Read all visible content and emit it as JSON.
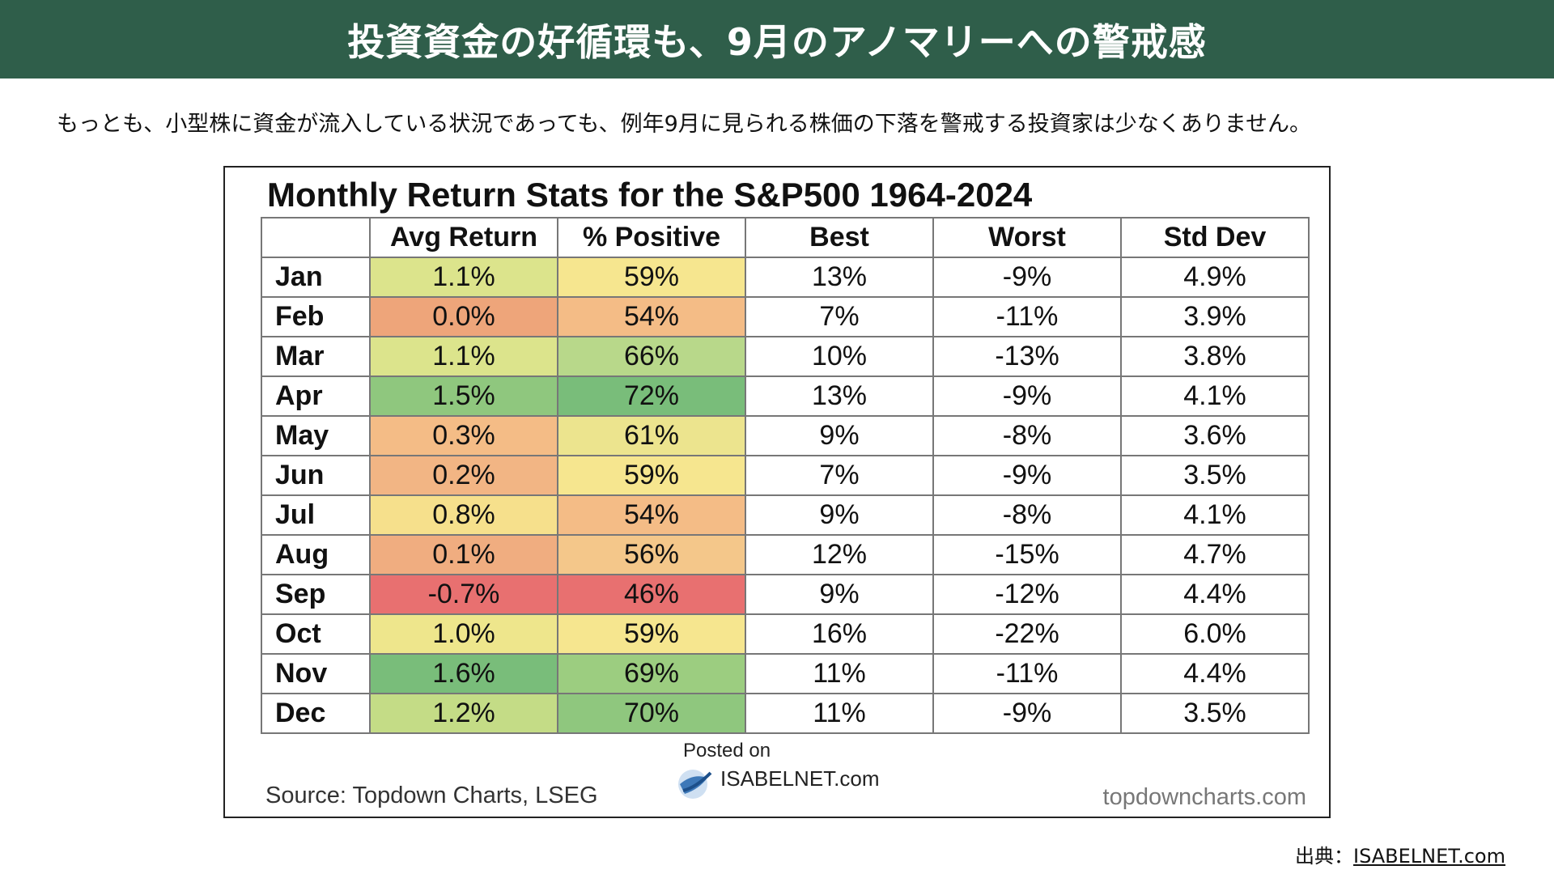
{
  "header": {
    "title": "投資資金の好循環も、9月のアノマリーへの警戒感"
  },
  "intro": {
    "text": "もっとも、小型株に資金が流入している状況であっても、例年9月に見られる株価の下落を警戒する投資家は少なくありません。"
  },
  "figure": {
    "title": "Monthly Return Stats for the S&P500  1964-2024",
    "source": "Source: Topdown Charts, LSEG",
    "posted_on": "Posted on",
    "brand": "ISABELNET.com",
    "site": "topdowncharts.com",
    "colors": {
      "red": "#e87070",
      "orange": "#f0a57a",
      "light-orange": "#f4bc86",
      "yellow": "#f6e68f",
      "yellow-green": "#dce48c",
      "light-green": "#b8d88a",
      "green": "#8fc77e",
      "dark-green": "#79bd7a"
    }
  },
  "chart_data": {
    "type": "table",
    "title": "Monthly Return Stats for the S&P500  1964-2024",
    "columns": [
      "",
      "Avg Return",
      "% Positive",
      "Best",
      "Worst",
      "Std Dev"
    ],
    "rows": [
      {
        "month": "Jan",
        "avg": "1.1%",
        "pos": "59%",
        "best": "13%",
        "worst": "-9%",
        "std": "4.9%",
        "avg_color": "#dce48c",
        "pos_color": "#f6e68f"
      },
      {
        "month": "Feb",
        "avg": "0.0%",
        "pos": "54%",
        "best": "7%",
        "worst": "-11%",
        "std": "3.9%",
        "avg_color": "#eea57a",
        "pos_color": "#f4bc86"
      },
      {
        "month": "Mar",
        "avg": "1.1%",
        "pos": "66%",
        "best": "10%",
        "worst": "-13%",
        "std": "3.8%",
        "avg_color": "#dce48c",
        "pos_color": "#b8d88a"
      },
      {
        "month": "Apr",
        "avg": "1.5%",
        "pos": "72%",
        "best": "13%",
        "worst": "-9%",
        "std": "4.1%",
        "avg_color": "#8fc77e",
        "pos_color": "#79bd7a"
      },
      {
        "month": "May",
        "avg": "0.3%",
        "pos": "61%",
        "best": "9%",
        "worst": "-8%",
        "std": "3.6%",
        "avg_color": "#f4bc86",
        "pos_color": "#ece48e"
      },
      {
        "month": "Jun",
        "avg": "0.2%",
        "pos": "59%",
        "best": "7%",
        "worst": "-9%",
        "std": "3.5%",
        "avg_color": "#f2b584",
        "pos_color": "#f6e68f"
      },
      {
        "month": "Jul",
        "avg": "0.8%",
        "pos": "54%",
        "best": "9%",
        "worst": "-8%",
        "std": "4.1%",
        "avg_color": "#f6e08c",
        "pos_color": "#f4bc86"
      },
      {
        "month": "Aug",
        "avg": "0.1%",
        "pos": "56%",
        "best": "12%",
        "worst": "-15%",
        "std": "4.7%",
        "avg_color": "#f0ad80",
        "pos_color": "#f4c78a"
      },
      {
        "month": "Sep",
        "avg": "-0.7%",
        "pos": "46%",
        "best": "9%",
        "worst": "-12%",
        "std": "4.4%",
        "avg_color": "#e87070",
        "pos_color": "#e87070"
      },
      {
        "month": "Oct",
        "avg": "1.0%",
        "pos": "59%",
        "best": "16%",
        "worst": "-22%",
        "std": "6.0%",
        "avg_color": "#eee68c",
        "pos_color": "#f6e68f"
      },
      {
        "month": "Nov",
        "avg": "1.6%",
        "pos": "69%",
        "best": "11%",
        "worst": "-11%",
        "std": "4.4%",
        "avg_color": "#79bd7a",
        "pos_color": "#9ccd80"
      },
      {
        "month": "Dec",
        "avg": "1.2%",
        "pos": "70%",
        "best": "11%",
        "worst": "-9%",
        "std": "3.5%",
        "avg_color": "#c4dc86",
        "pos_color": "#8fc77e"
      }
    ]
  },
  "credit": {
    "label": "出典：",
    "link": "ISABELNET.com"
  }
}
